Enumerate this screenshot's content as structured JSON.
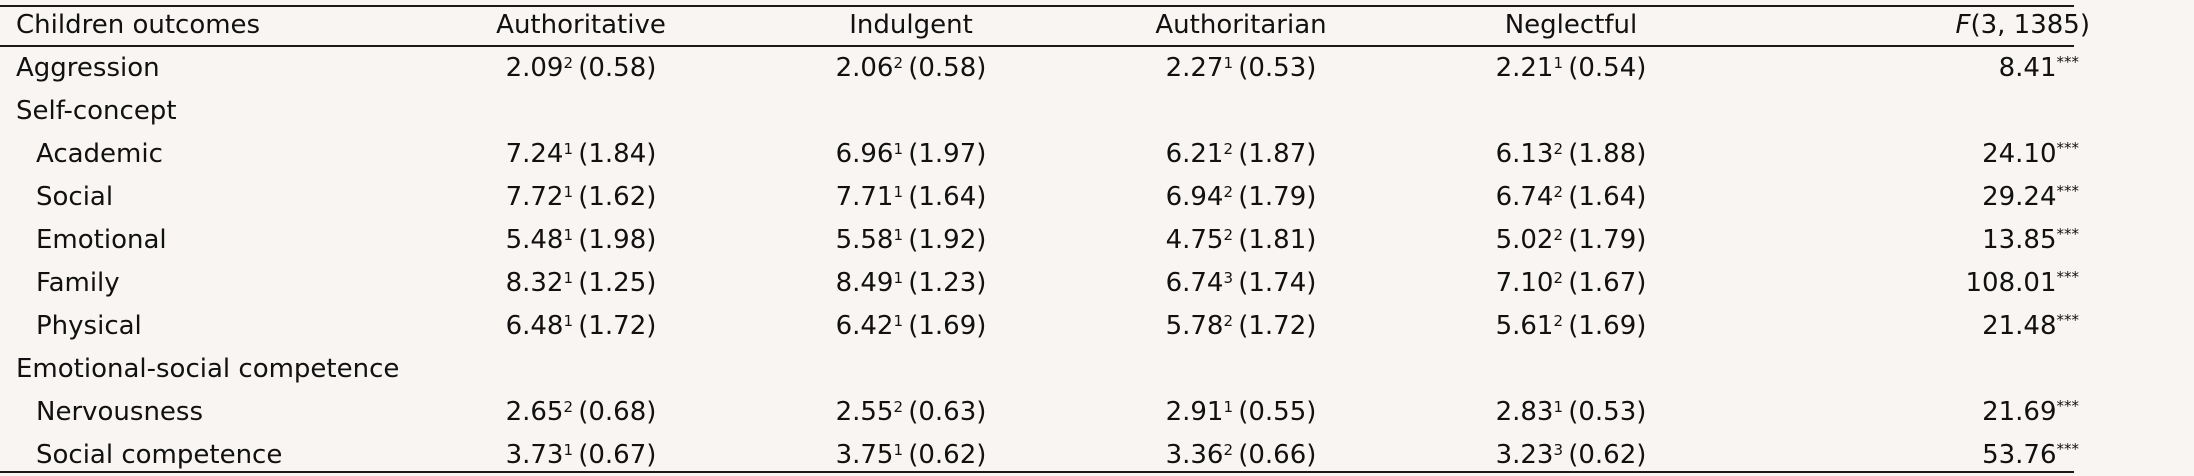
{
  "header": {
    "outcome_label": "Children outcomes",
    "styles": [
      "Authoritative",
      "Indulgent",
      "Authoritarian",
      "Neglectful"
    ],
    "f_symbol": "F",
    "f_df": "(3, 1385)"
  },
  "rows": [
    {
      "label": "Aggression",
      "indent": false,
      "cells": [
        {
          "m": "2.09",
          "g": "2",
          "sd": "(0.58)"
        },
        {
          "m": "2.06",
          "g": "2",
          "sd": "(0.58)"
        },
        {
          "m": "2.27",
          "g": "1",
          "sd": "(0.53)"
        },
        {
          "m": "2.21",
          "g": "1",
          "sd": "(0.54)"
        }
      ],
      "f": "8.41",
      "sig": "***"
    },
    {
      "label": "Self-concept",
      "indent": false,
      "section": true
    },
    {
      "label": "Academic",
      "indent": true,
      "cells": [
        {
          "m": "7.24",
          "g": "1",
          "sd": "(1.84)"
        },
        {
          "m": "6.96",
          "g": "1",
          "sd": "(1.97)"
        },
        {
          "m": "6.21",
          "g": "2",
          "sd": "(1.87)"
        },
        {
          "m": "6.13",
          "g": "2",
          "sd": "(1.88)"
        }
      ],
      "f": "24.10",
      "sig": "***"
    },
    {
      "label": "Social",
      "indent": true,
      "cells": [
        {
          "m": "7.72",
          "g": "1",
          "sd": "(1.62)"
        },
        {
          "m": "7.71",
          "g": "1",
          "sd": "(1.64)"
        },
        {
          "m": "6.94",
          "g": "2",
          "sd": "(1.79)"
        },
        {
          "m": "6.74",
          "g": "2",
          "sd": "(1.64)"
        }
      ],
      "f": "29.24",
      "sig": "***"
    },
    {
      "label": "Emotional",
      "indent": true,
      "cells": [
        {
          "m": "5.48",
          "g": "1",
          "sd": "(1.98)"
        },
        {
          "m": "5.58",
          "g": "1",
          "sd": "(1.92)"
        },
        {
          "m": "4.75",
          "g": "2",
          "sd": "(1.81)"
        },
        {
          "m": "5.02",
          "g": "2",
          "sd": "(1.79)"
        }
      ],
      "f": "13.85",
      "sig": "***"
    },
    {
      "label": "Family",
      "indent": true,
      "cells": [
        {
          "m": "8.32",
          "g": "1",
          "sd": "(1.25)"
        },
        {
          "m": "8.49",
          "g": "1",
          "sd": "(1.23)"
        },
        {
          "m": "6.74",
          "g": "3",
          "sd": "(1.74)"
        },
        {
          "m": "7.10",
          "g": "2",
          "sd": "(1.67)"
        }
      ],
      "f": "108.01",
      "sig": "***"
    },
    {
      "label": "Physical",
      "indent": true,
      "cells": [
        {
          "m": "6.48",
          "g": "1",
          "sd": "(1.72)"
        },
        {
          "m": "6.42",
          "g": "1",
          "sd": "(1.69)"
        },
        {
          "m": "5.78",
          "g": "2",
          "sd": "(1.72)"
        },
        {
          "m": "5.61",
          "g": "2",
          "sd": "(1.69)"
        }
      ],
      "f": "21.48",
      "sig": "***"
    },
    {
      "label": "Emotional-social competence",
      "indent": false,
      "section": true
    },
    {
      "label": "Nervousness",
      "indent": true,
      "cells": [
        {
          "m": "2.65",
          "g": "2",
          "sd": "(0.68)"
        },
        {
          "m": "2.55",
          "g": "2",
          "sd": "(0.63)"
        },
        {
          "m": "2.91",
          "g": "1",
          "sd": "(0.55)"
        },
        {
          "m": "2.83",
          "g": "1",
          "sd": "(0.53)"
        }
      ],
      "f": "21.69",
      "sig": "***"
    },
    {
      "label": "Social competence",
      "indent": true,
      "cells": [
        {
          "m": "3.73",
          "g": "1",
          "sd": "(0.67)"
        },
        {
          "m": "3.75",
          "g": "1",
          "sd": "(0.62)"
        },
        {
          "m": "3.36",
          "g": "2",
          "sd": "(0.66)"
        },
        {
          "m": "3.23",
          "g": "3",
          "sd": "(0.62)"
        }
      ],
      "f": "53.76",
      "sig": "***"
    }
  ]
}
